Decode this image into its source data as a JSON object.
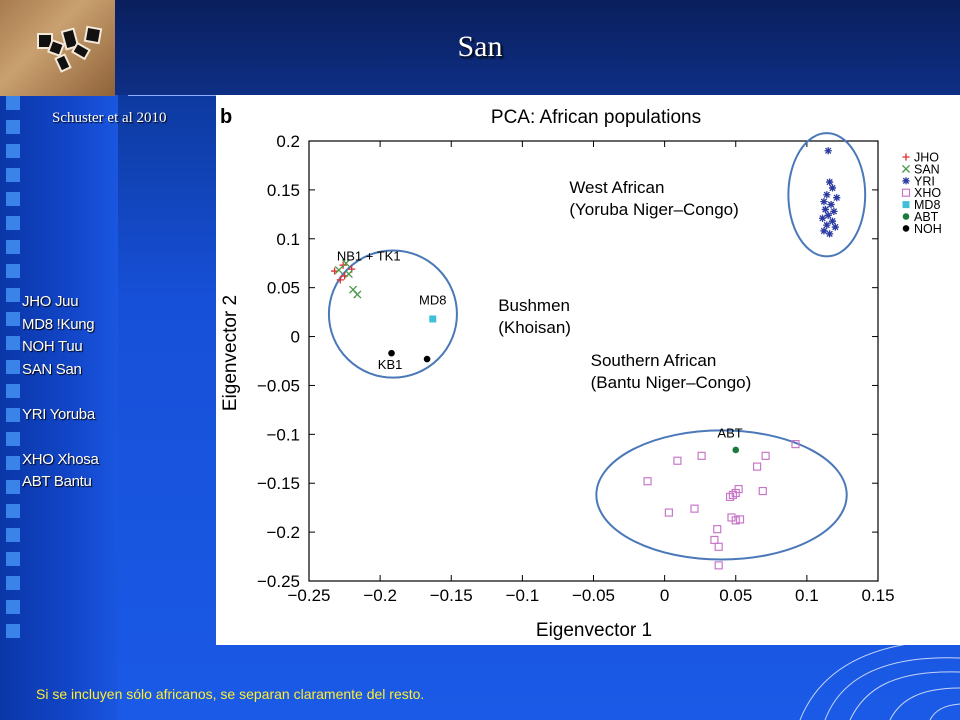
{
  "slide": {
    "title": "San",
    "citation": "Schuster et al 2010",
    "legend_lines": [
      "JHO Juu",
      "MD8 !Kung",
      "NOH Tuu",
      "SAN San",
      "",
      "YRI Yoruba",
      "",
      "XHO Xhosa",
      "ABT Bantu"
    ],
    "footer": "Si se incluyen sólo africanos, se separan claramente del resto."
  },
  "chart_data": {
    "type": "scatter",
    "panel_label": "b",
    "title": "PCA: African populations",
    "xlabel": "Eigenvector 1",
    "ylabel": "Eigenvector 2",
    "xlim": [
      -0.25,
      0.15
    ],
    "ylim": [
      -0.25,
      0.2
    ],
    "xticks": [
      -0.25,
      -0.2,
      -0.15,
      -0.1,
      -0.05,
      0,
      0.05,
      0.1,
      0.15
    ],
    "yticks": [
      -0.25,
      -0.2,
      -0.15,
      -0.1,
      -0.05,
      0,
      0.05,
      0.1,
      0.15,
      0.2
    ],
    "xtick_labels": [
      "−0.25",
      "−0.2",
      "−0.15",
      "−0.1",
      "−0.05",
      "0",
      "0.05",
      "0.1",
      "0.15"
    ],
    "ytick_labels": [
      "−0.25",
      "−0.2",
      "−0.15",
      "−0.1",
      "−0.05",
      "0",
      "0.05",
      "0.1",
      "0.15",
      "0.2"
    ],
    "legend_position": "right",
    "series": [
      {
        "name": "JHO",
        "marker": "plus",
        "color": "#e03030",
        "points": [
          [
            -0.232,
            0.067
          ],
          [
            -0.226,
            0.073
          ],
          [
            -0.225,
            0.062
          ],
          [
            -0.22,
            0.069
          ],
          [
            -0.228,
            0.058
          ]
        ]
      },
      {
        "name": "SAN",
        "marker": "x",
        "color": "#4a9a4a",
        "points": [
          [
            -0.229,
            0.068
          ],
          [
            -0.222,
            0.064
          ],
          [
            -0.219,
            0.048
          ],
          [
            -0.216,
            0.043
          ],
          [
            -0.224,
            0.075
          ]
        ]
      },
      {
        "name": "YRI",
        "marker": "asterisk",
        "color": "#2a3aa0",
        "points": [
          [
            0.115,
            0.19
          ],
          [
            0.116,
            0.158
          ],
          [
            0.118,
            0.152
          ],
          [
            0.114,
            0.145
          ],
          [
            0.121,
            0.142
          ],
          [
            0.112,
            0.138
          ],
          [
            0.117,
            0.135
          ],
          [
            0.113,
            0.13
          ],
          [
            0.119,
            0.128
          ],
          [
            0.115,
            0.124
          ],
          [
            0.111,
            0.121
          ],
          [
            0.118,
            0.118
          ],
          [
            0.114,
            0.114
          ],
          [
            0.12,
            0.112
          ],
          [
            0.112,
            0.108
          ],
          [
            0.116,
            0.105
          ]
        ]
      },
      {
        "name": "XHO",
        "marker": "square",
        "color": "#c878c8",
        "points": [
          [
            -0.012,
            -0.148
          ],
          [
            0.009,
            -0.127
          ],
          [
            0.026,
            -0.122
          ],
          [
            0.071,
            -0.122
          ],
          [
            0.092,
            -0.11
          ],
          [
            0.065,
            -0.133
          ],
          [
            0.003,
            -0.18
          ],
          [
            0.021,
            -0.176
          ],
          [
            0.046,
            -0.164
          ],
          [
            0.05,
            -0.16
          ],
          [
            0.052,
            -0.156
          ],
          [
            0.048,
            -0.162
          ],
          [
            0.069,
            -0.158
          ],
          [
            0.037,
            -0.197
          ],
          [
            0.035,
            -0.208
          ],
          [
            0.038,
            -0.215
          ],
          [
            0.047,
            -0.185
          ],
          [
            0.05,
            -0.188
          ],
          [
            0.053,
            -0.187
          ],
          [
            0.038,
            -0.234
          ]
        ]
      },
      {
        "name": "MD8",
        "marker": "filled-square",
        "color": "#40c0d8",
        "points": [
          [
            -0.163,
            0.018
          ]
        ]
      },
      {
        "name": "ABT",
        "marker": "dot",
        "color": "#1a7a3a",
        "points": [
          [
            0.05,
            -0.116
          ]
        ]
      },
      {
        "name": "NOH",
        "marker": "dot",
        "color": "#000000",
        "points": [
          [
            -0.192,
            -0.017
          ],
          [
            -0.167,
            -0.023
          ]
        ]
      }
    ],
    "point_labels": [
      {
        "text": "NB1 + TK1",
        "x": -0.208,
        "y": 0.078
      },
      {
        "text": "MD8",
        "x": -0.163,
        "y": 0.033
      },
      {
        "text": "KB1",
        "x": -0.193,
        "y": -0.033
      },
      {
        "text": "ABT",
        "x": 0.046,
        "y": -0.103
      }
    ],
    "annotations": [
      {
        "lines": [
          "West African",
          "(Yoruba Niger–Congo)"
        ],
        "x": -0.067,
        "y": 0.147
      },
      {
        "lines": [
          "Bushmen",
          "(Khoisan)"
        ],
        "x": -0.117,
        "y": 0.026
      },
      {
        "lines": [
          "Southern African",
          "(Bantu Niger–Congo)"
        ],
        "x": -0.052,
        "y": -0.03
      }
    ],
    "cluster_circles": [
      {
        "cx": -0.191,
        "cy": 0.023,
        "rx": 0.045,
        "ry": 0.065
      },
      {
        "cx": 0.114,
        "cy": 0.145,
        "rx": 0.027,
        "ry": 0.063
      },
      {
        "cx": 0.04,
        "cy": -0.162,
        "rx": 0.088,
        "ry": 0.066
      }
    ]
  }
}
